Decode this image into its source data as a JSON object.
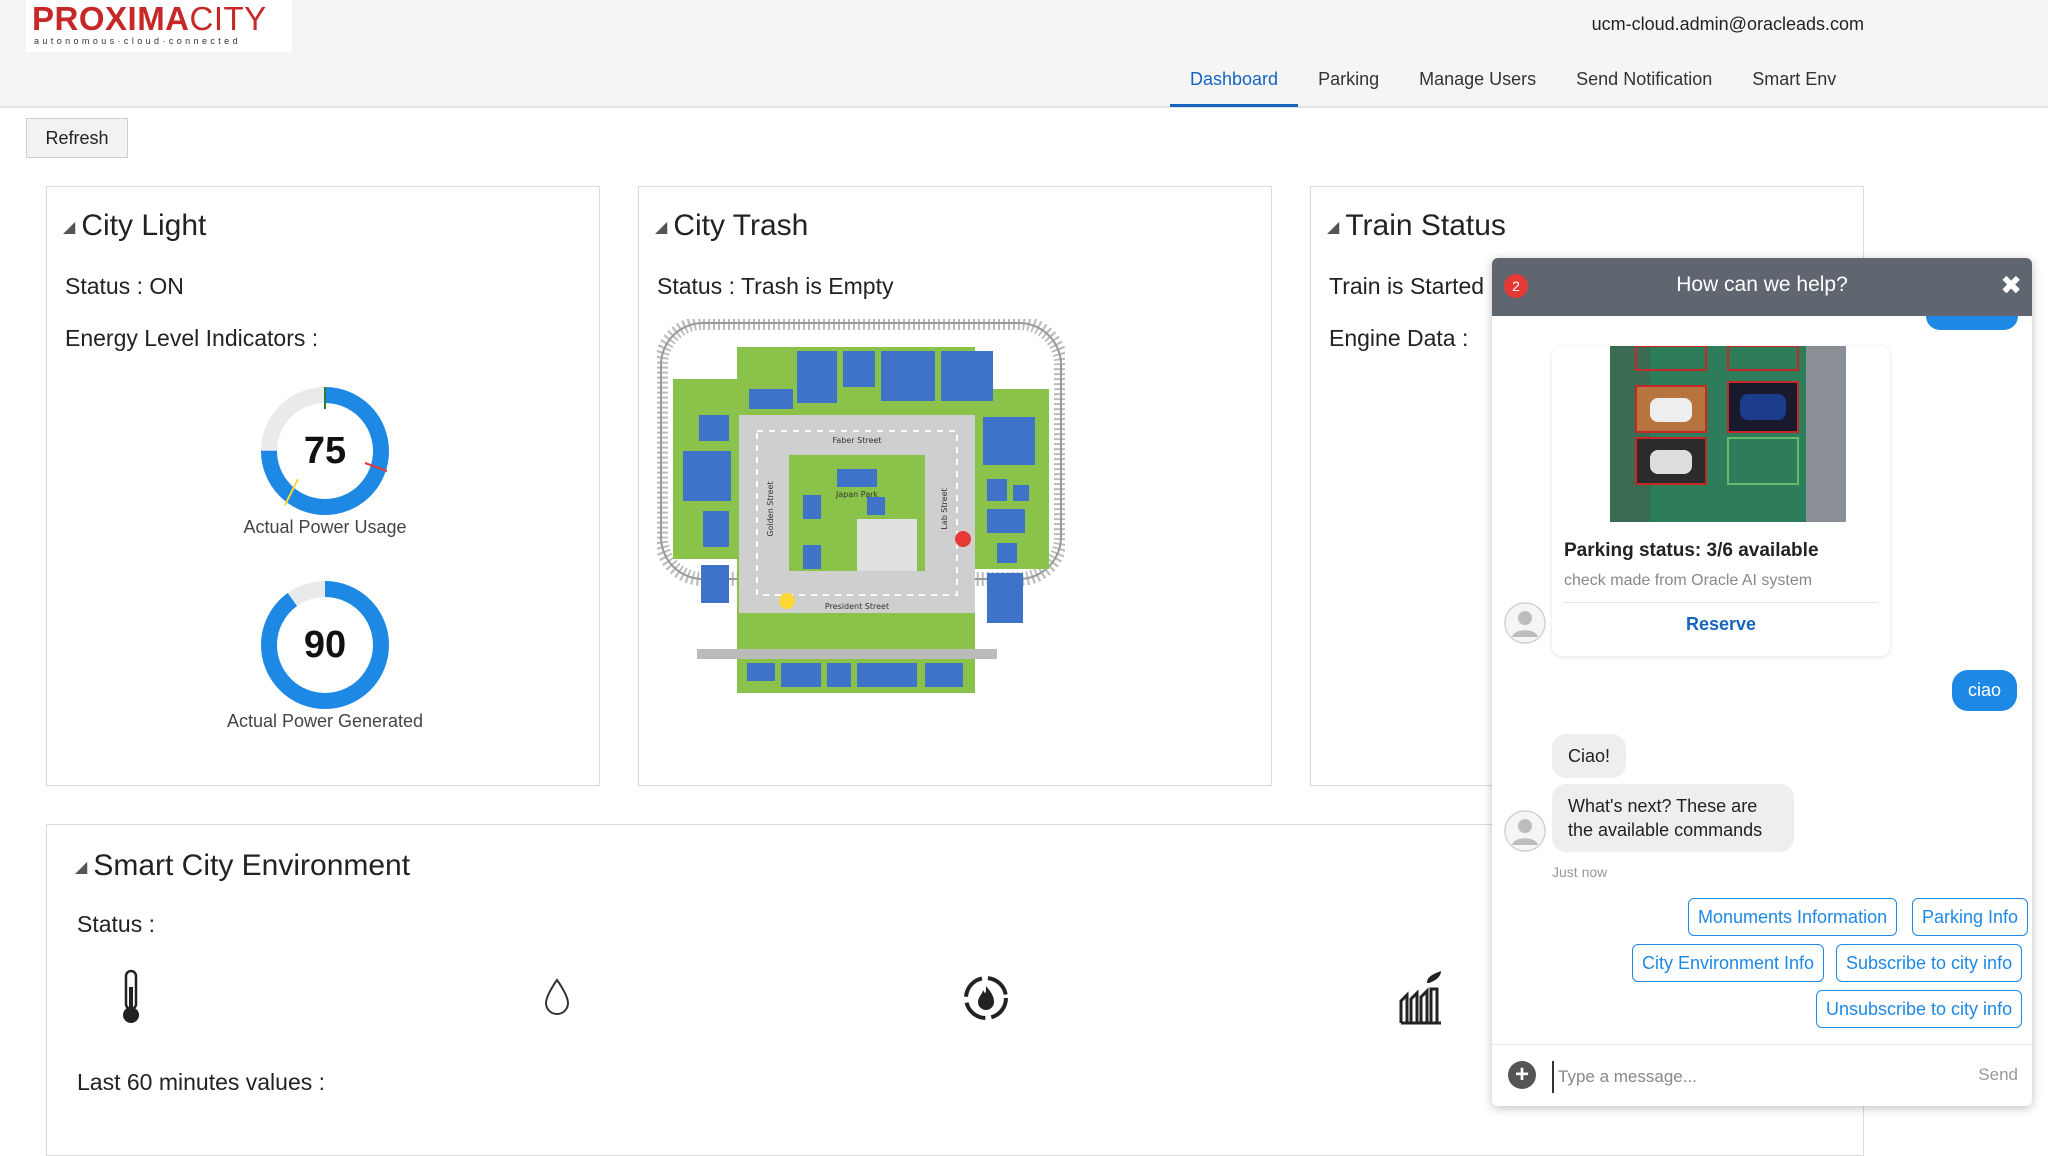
{
  "brand": {
    "name_part1": "PROXIMA",
    "name_part2": "CITY",
    "tagline": "autonomous·cloud·connected"
  },
  "user": {
    "email": "ucm-cloud.admin@oracleads.com"
  },
  "nav": {
    "tabs": [
      {
        "label": "Dashboard",
        "active": true
      },
      {
        "label": "Parking",
        "active": false
      },
      {
        "label": "Manage Users",
        "active": false
      },
      {
        "label": "Send Notification",
        "active": false
      },
      {
        "label": "Smart Env",
        "active": false
      }
    ]
  },
  "toolbar": {
    "refresh_label": "Refresh"
  },
  "city_light": {
    "title": "City Light",
    "status": "Status : ON",
    "energy_label": "Energy Level Indicators :",
    "gauges": [
      {
        "value": "75",
        "label": "Actual Power Usage",
        "color": "#1e88e5"
      },
      {
        "value": "90",
        "label": "Actual Power Generated",
        "color": "#1e88e5"
      }
    ]
  },
  "city_trash": {
    "title": "City Trash",
    "status": "Status : Trash is Empty",
    "map_labels": {
      "north": "Faber Street",
      "south": "President Street",
      "west": "Golden Street",
      "east": "Lab Street",
      "park": "Japan Park"
    }
  },
  "train_status": {
    "title": "Train Status",
    "status": "Train is Started",
    "engine_label": "Engine Data :"
  },
  "smart_env": {
    "title": "Smart City Environment",
    "status_label": "Status :",
    "icons": [
      "thermometer-icon",
      "water-drop-icon",
      "fire-icon",
      "factory-icon"
    ],
    "history_label": "Last 60 minutes values :"
  },
  "chat": {
    "title": "How can we help?",
    "badge": "2",
    "card": {
      "title": "Parking status: 3/6 available",
      "subtitle": "check made from Oracle AI system",
      "button": "Reserve"
    },
    "user_message": "ciao",
    "bot_messages": [
      "Ciao!",
      "What's next? These are the available commands"
    ],
    "timestamp": "Just now",
    "commands": [
      "Monuments Information",
      "Parking Info",
      "City Environment Info",
      "Subscribe to city info",
      "Unsubscribe to city info"
    ],
    "input_placeholder": "Type a message...",
    "send_label": "Send"
  }
}
